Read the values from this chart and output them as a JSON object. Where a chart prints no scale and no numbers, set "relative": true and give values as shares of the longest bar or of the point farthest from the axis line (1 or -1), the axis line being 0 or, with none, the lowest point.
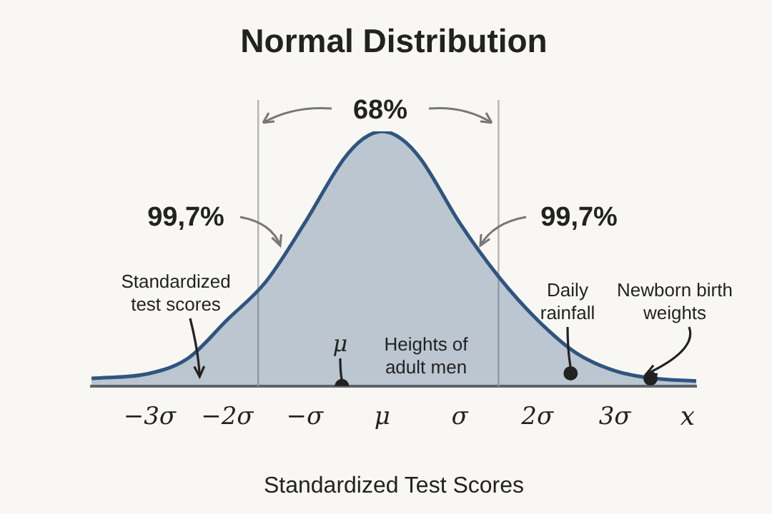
{
  "chart_data": {
    "type": "area",
    "title": "Normal Distribution",
    "xlabel": "Standardized Test Scores",
    "relative": true,
    "xlim": [
      -3.75,
      4.05
    ],
    "xticks": [
      {
        "value": -3,
        "label": "−3σ"
      },
      {
        "value": -2,
        "label": "−2σ"
      },
      {
        "value": -1,
        "label": "−σ"
      },
      {
        "value": 0,
        "label": "μ"
      },
      {
        "value": 1,
        "label": "σ"
      },
      {
        "value": 2,
        "label": "2σ"
      },
      {
        "value": 3,
        "label": "3σ"
      }
    ],
    "series": [
      {
        "color": "#2f5580",
        "x": [
          -3.75,
          -3,
          -2.5,
          -2,
          -1.5,
          -1,
          -0.5,
          -0.25,
          0,
          0.25,
          0.5,
          1,
          1.5,
          2,
          2.5,
          3,
          3.5,
          4.05
        ],
        "values": [
          0.03,
          0.05,
          0.11,
          0.26,
          0.41,
          0.64,
          0.89,
          0.97,
          1,
          0.97,
          0.89,
          0.64,
          0.43,
          0.26,
          0.13,
          0.06,
          0.03,
          0.02
        ]
      },
      {
        "type": "scatter",
        "marker": "circle",
        "color": "#222222",
        "x": [
          -0.52,
          2.43,
          3.46
        ],
        "values": [
          0,
          0.05,
          0.03
        ]
      }
    ],
    "ref_lines": [
      {
        "axis": "x",
        "value": -1.6,
        "color": "#b5b5b5"
      },
      {
        "axis": "x",
        "value": 1.5,
        "color": "#b5b5b5"
      }
    ],
    "grid": false,
    "legend": false,
    "marker": "none",
    "line_style": "solid",
    "annotations": [
      "68%",
      "99,7%",
      "99,7%",
      {
        "text": "Standardized test scores",
        "x": -2.3,
        "y": 0.02
      },
      {
        "text": "μ",
        "x": -0.52,
        "y": 0
      },
      "Heights of adult men",
      {
        "text": "Daily rainfall",
        "x": 2.43,
        "y": 0.05
      },
      {
        "text": "Newborn birth weights",
        "x": 3.46,
        "y": 0.03
      },
      "x"
    ]
  }
}
